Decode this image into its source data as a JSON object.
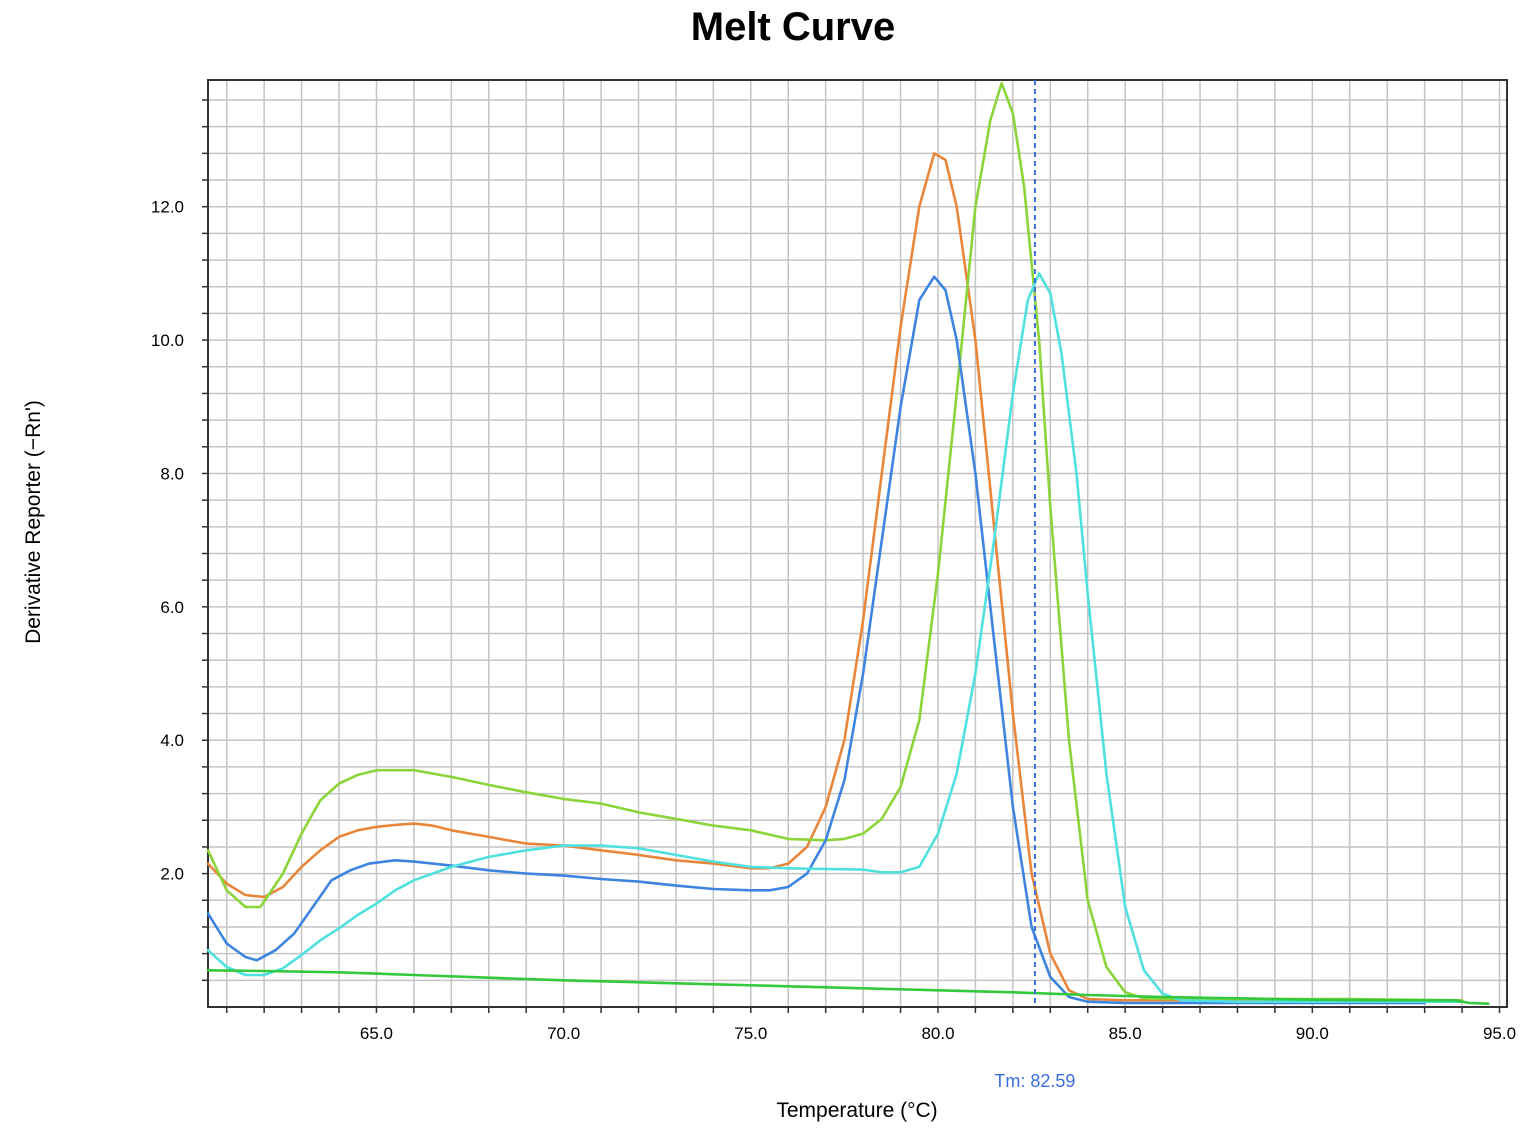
{
  "chart_data": {
    "type": "line",
    "title": "Melt Curve",
    "xlabel": "Temperature (°C)",
    "ylabel": "Derivative Reporter (−Rn')",
    "xlim": [
      60.5,
      95.2
    ],
    "ylim": [
      0,
      13.9
    ],
    "xticks": [
      65,
      70,
      75,
      80,
      85,
      90,
      95
    ],
    "xtick_labels": [
      "65.0",
      "70.0",
      "75.0",
      "80.0",
      "85.0",
      "90.0",
      "95.0"
    ],
    "yticks": [
      2,
      4,
      6,
      8,
      10,
      12
    ],
    "ytick_labels": [
      "2.0",
      "4.0",
      "6.0",
      "8.0",
      "10.0",
      "12.0"
    ],
    "x_minor_step": 1.0,
    "y_minor_step": 0.4,
    "grid": true,
    "legend": "none",
    "marker": {
      "x": 82.59,
      "label": "Tm: 82.59",
      "color": "#3a6fe0"
    },
    "series": [
      {
        "color": "#e8873c",
        "points": [
          [
            60.5,
            2.15
          ],
          [
            61.0,
            1.85
          ],
          [
            61.5,
            1.68
          ],
          [
            62.0,
            1.65
          ],
          [
            62.5,
            1.8
          ],
          [
            63.0,
            2.1
          ],
          [
            63.5,
            2.35
          ],
          [
            64.0,
            2.55
          ],
          [
            64.5,
            2.65
          ],
          [
            65.0,
            2.7
          ],
          [
            65.5,
            2.73
          ],
          [
            66.0,
            2.75
          ],
          [
            66.5,
            2.72
          ],
          [
            67.0,
            2.65
          ],
          [
            68.0,
            2.55
          ],
          [
            69.0,
            2.45
          ],
          [
            70.0,
            2.42
          ],
          [
            71.0,
            2.35
          ],
          [
            72.0,
            2.28
          ],
          [
            73.0,
            2.2
          ],
          [
            74.0,
            2.15
          ],
          [
            75.0,
            2.08
          ],
          [
            75.5,
            2.08
          ],
          [
            76.0,
            2.15
          ],
          [
            76.5,
            2.4
          ],
          [
            77.0,
            3.0
          ],
          [
            77.5,
            4.0
          ],
          [
            78.0,
            5.8
          ],
          [
            78.5,
            8.0
          ],
          [
            79.0,
            10.2
          ],
          [
            79.5,
            12.0
          ],
          [
            79.9,
            12.8
          ],
          [
            80.2,
            12.7
          ],
          [
            80.5,
            12.0
          ],
          [
            81.0,
            10.0
          ],
          [
            81.5,
            7.2
          ],
          [
            82.0,
            4.4
          ],
          [
            82.5,
            2.0
          ],
          [
            83.0,
            0.8
          ],
          [
            83.5,
            0.25
          ],
          [
            84.0,
            0.12
          ],
          [
            85.0,
            0.1
          ],
          [
            87.0,
            0.1
          ],
          [
            90.0,
            0.1
          ],
          [
            93.0,
            0.1
          ]
        ]
      },
      {
        "color": "#8bd43a",
        "points": [
          [
            60.5,
            2.35
          ],
          [
            61.0,
            1.75
          ],
          [
            61.5,
            1.5
          ],
          [
            61.9,
            1.5
          ],
          [
            62.5,
            2.0
          ],
          [
            63.0,
            2.6
          ],
          [
            63.5,
            3.1
          ],
          [
            64.0,
            3.35
          ],
          [
            64.5,
            3.48
          ],
          [
            65.0,
            3.55
          ],
          [
            66.0,
            3.55
          ],
          [
            67.0,
            3.45
          ],
          [
            68.0,
            3.33
          ],
          [
            69.0,
            3.22
          ],
          [
            70.0,
            3.12
          ],
          [
            71.0,
            3.05
          ],
          [
            72.0,
            2.92
          ],
          [
            73.0,
            2.82
          ],
          [
            74.0,
            2.72
          ],
          [
            75.0,
            2.65
          ],
          [
            76.0,
            2.52
          ],
          [
            77.0,
            2.5
          ],
          [
            77.5,
            2.52
          ],
          [
            78.0,
            2.6
          ],
          [
            78.5,
            2.82
          ],
          [
            79.0,
            3.3
          ],
          [
            79.5,
            4.3
          ],
          [
            80.0,
            6.5
          ],
          [
            80.5,
            9.2
          ],
          [
            81.0,
            12.0
          ],
          [
            81.4,
            13.3
          ],
          [
            81.7,
            13.85
          ],
          [
            82.0,
            13.4
          ],
          [
            82.3,
            12.3
          ],
          [
            82.7,
            10.0
          ],
          [
            83.0,
            7.5
          ],
          [
            83.5,
            4.0
          ],
          [
            84.0,
            1.6
          ],
          [
            84.5,
            0.6
          ],
          [
            85.0,
            0.22
          ],
          [
            85.5,
            0.13
          ],
          [
            86.0,
            0.12
          ],
          [
            88.0,
            0.12
          ],
          [
            91.0,
            0.12
          ],
          [
            94.0,
            0.1
          ]
        ]
      },
      {
        "color": "#3d85e0",
        "points": [
          [
            60.5,
            1.4
          ],
          [
            61.0,
            0.95
          ],
          [
            61.5,
            0.75
          ],
          [
            61.8,
            0.7
          ],
          [
            62.3,
            0.85
          ],
          [
            62.8,
            1.1
          ],
          [
            63.3,
            1.5
          ],
          [
            63.8,
            1.9
          ],
          [
            64.3,
            2.05
          ],
          [
            64.8,
            2.15
          ],
          [
            65.5,
            2.2
          ],
          [
            66.0,
            2.18
          ],
          [
            67.0,
            2.12
          ],
          [
            68.0,
            2.05
          ],
          [
            69.0,
            2.0
          ],
          [
            70.0,
            1.97
          ],
          [
            71.0,
            1.92
          ],
          [
            72.0,
            1.88
          ],
          [
            73.0,
            1.82
          ],
          [
            74.0,
            1.77
          ],
          [
            75.0,
            1.75
          ],
          [
            75.5,
            1.75
          ],
          [
            76.0,
            1.8
          ],
          [
            76.5,
            2.0
          ],
          [
            77.0,
            2.5
          ],
          [
            77.5,
            3.4
          ],
          [
            78.0,
            5.0
          ],
          [
            78.5,
            7.0
          ],
          [
            79.0,
            9.0
          ],
          [
            79.5,
            10.6
          ],
          [
            79.9,
            10.95
          ],
          [
            80.2,
            10.75
          ],
          [
            80.5,
            10.0
          ],
          [
            81.0,
            8.0
          ],
          [
            81.5,
            5.5
          ],
          [
            82.0,
            3.0
          ],
          [
            82.5,
            1.2
          ],
          [
            83.0,
            0.45
          ],
          [
            83.5,
            0.15
          ],
          [
            84.0,
            0.08
          ],
          [
            85.0,
            0.06
          ],
          [
            88.0,
            0.06
          ],
          [
            91.0,
            0.06
          ],
          [
            93.0,
            0.06
          ]
        ]
      },
      {
        "color": "#4fe0e0",
        "points": [
          [
            60.5,
            0.85
          ],
          [
            61.0,
            0.6
          ],
          [
            61.5,
            0.48
          ],
          [
            62.0,
            0.48
          ],
          [
            62.5,
            0.58
          ],
          [
            63.0,
            0.78
          ],
          [
            63.5,
            1.0
          ],
          [
            64.0,
            1.18
          ],
          [
            64.5,
            1.38
          ],
          [
            65.0,
            1.55
          ],
          [
            65.5,
            1.75
          ],
          [
            66.0,
            1.9
          ],
          [
            67.0,
            2.1
          ],
          [
            68.0,
            2.25
          ],
          [
            69.0,
            2.35
          ],
          [
            70.0,
            2.42
          ],
          [
            71.0,
            2.42
          ],
          [
            72.0,
            2.38
          ],
          [
            73.0,
            2.28
          ],
          [
            74.0,
            2.18
          ],
          [
            75.0,
            2.1
          ],
          [
            76.0,
            2.08
          ],
          [
            77.0,
            2.07
          ],
          [
            78.0,
            2.06
          ],
          [
            78.5,
            2.02
          ],
          [
            79.0,
            2.02
          ],
          [
            79.5,
            2.1
          ],
          [
            80.0,
            2.6
          ],
          [
            80.5,
            3.5
          ],
          [
            81.0,
            5.0
          ],
          [
            81.5,
            7.0
          ],
          [
            82.0,
            9.2
          ],
          [
            82.4,
            10.6
          ],
          [
            82.7,
            11.0
          ],
          [
            83.0,
            10.7
          ],
          [
            83.3,
            9.8
          ],
          [
            83.7,
            8.0
          ],
          [
            84.0,
            6.2
          ],
          [
            84.5,
            3.5
          ],
          [
            85.0,
            1.5
          ],
          [
            85.5,
            0.55
          ],
          [
            86.0,
            0.2
          ],
          [
            86.5,
            0.1
          ],
          [
            88.0,
            0.08
          ],
          [
            91.0,
            0.08
          ],
          [
            94.0,
            0.08
          ]
        ]
      },
      {
        "color": "#33c93c",
        "points": [
          [
            60.5,
            0.55
          ],
          [
            62.0,
            0.54
          ],
          [
            64.0,
            0.52
          ],
          [
            66.0,
            0.48
          ],
          [
            68.0,
            0.44
          ],
          [
            70.0,
            0.4
          ],
          [
            72.0,
            0.37
          ],
          [
            74.0,
            0.34
          ],
          [
            76.0,
            0.31
          ],
          [
            78.0,
            0.28
          ],
          [
            80.0,
            0.25
          ],
          [
            82.0,
            0.22
          ],
          [
            84.0,
            0.18
          ],
          [
            86.0,
            0.15
          ],
          [
            88.0,
            0.13
          ],
          [
            90.0,
            0.11
          ],
          [
            92.0,
            0.1
          ],
          [
            93.8,
            0.1
          ],
          [
            94.2,
            0.06
          ],
          [
            94.7,
            0.05
          ]
        ]
      }
    ]
  }
}
